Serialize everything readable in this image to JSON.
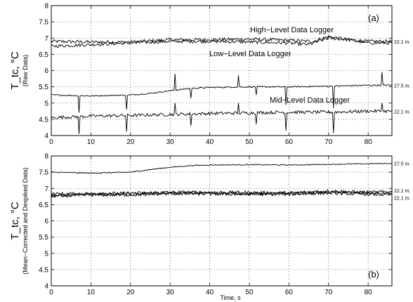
{
  "chart_data": [
    {
      "type": "line",
      "panel_label": "(a)",
      "ylabel": "T_tc, °C",
      "ylabel_sub": "(Raw Data)",
      "xlim": [
        0,
        86
      ],
      "ylim": [
        4,
        8
      ],
      "xticks": [
        0,
        10,
        20,
        30,
        40,
        50,
        60,
        70,
        80
      ],
      "yticks": [
        4,
        4.5,
        5,
        5.5,
        6,
        6.5,
        7,
        7.5,
        8
      ],
      "grid": true,
      "annotations": [
        "High−Level Data Logger",
        "Low−Level Data Logger",
        "Mid−Level Data Logger"
      ],
      "series": [
        {
          "name": "22.1 m.",
          "baseline": {
            "x": [
              0,
              10,
              20,
              30,
              40,
              50,
              60,
              66,
              70,
              75,
              80,
              86
            ],
            "y": [
              6.9,
              6.88,
              6.88,
              6.95,
              6.95,
              6.97,
              6.93,
              6.9,
              7.05,
              6.95,
              6.9,
              6.9
            ]
          },
          "noise": 0.05,
          "spikes": []
        },
        {
          "name": "",
          "baseline": {
            "x": [
              0,
              10,
              20,
              30,
              40,
              50,
              60,
              65,
              70,
              75,
              80,
              86
            ],
            "y": [
              6.75,
              6.8,
              6.85,
              6.9,
              6.9,
              6.88,
              6.85,
              6.8,
              7.0,
              6.95,
              6.85,
              6.85
            ]
          },
          "noise": 0.05,
          "spikes": []
        },
        {
          "name": "27.5 m.",
          "baseline": {
            "x": [
              0,
              10,
              20,
              25,
              30,
              35,
              40,
              50,
              60,
              70,
              80,
              86
            ],
            "y": [
              5.25,
              5.22,
              5.25,
              5.3,
              5.38,
              5.45,
              5.48,
              5.5,
              5.5,
              5.52,
              5.55,
              5.55
            ]
          },
          "noise": 0.02,
          "spikes": [
            {
              "x": 7,
              "y": 4.7
            },
            {
              "x": 19,
              "y": 4.8
            },
            {
              "x": 31.2,
              "y": 5.9
            },
            {
              "x": 35.2,
              "y": 5.15
            },
            {
              "x": 47.3,
              "y": 5.85
            },
            {
              "x": 51.8,
              "y": 5.25
            },
            {
              "x": 59.3,
              "y": 4.95
            },
            {
              "x": 71.3,
              "y": 4.85
            },
            {
              "x": 83.4,
              "y": 5.95
            }
          ]
        },
        {
          "name": "22.1 m.",
          "baseline": {
            "x": [
              0,
              10,
              20,
              30,
              40,
              50,
              60,
              70,
              80,
              86
            ],
            "y": [
              4.55,
              4.6,
              4.62,
              4.65,
              4.68,
              4.7,
              4.72,
              4.72,
              4.75,
              4.75
            ]
          },
          "noise": 0.05,
          "spikes": [
            {
              "x": 7,
              "y": 4.05
            },
            {
              "x": 19,
              "y": 4.12
            },
            {
              "x": 31.2,
              "y": 5.0
            },
            {
              "x": 35.2,
              "y": 4.3
            },
            {
              "x": 47.3,
              "y": 5.0
            },
            {
              "x": 51.8,
              "y": 4.35
            },
            {
              "x": 59.3,
              "y": 4.15
            },
            {
              "x": 71.3,
              "y": 4.08
            },
            {
              "x": 83.4,
              "y": 5.0
            }
          ]
        }
      ]
    },
    {
      "type": "line",
      "panel_label": "(b)",
      "ylabel": "T_tc, °C",
      "ylabel_sub": "(Mean−Corrected and Despiked Data)",
      "xlabel": "Time, s",
      "xlim": [
        0,
        86
      ],
      "ylim": [
        4,
        8
      ],
      "xticks": [
        0,
        10,
        20,
        30,
        40,
        50,
        60,
        70,
        80
      ],
      "yticks": [
        4,
        4.5,
        5,
        5.5,
        6,
        6.5,
        7,
        7.5,
        8
      ],
      "grid": true,
      "series": [
        {
          "name": "27.5 m.",
          "baseline": {
            "x": [
              0,
              10,
              20,
              25,
              30,
              35,
              40,
              50,
              60,
              70,
              80,
              86
            ],
            "y": [
              7.5,
              7.47,
              7.5,
              7.58,
              7.65,
              7.7,
              7.72,
              7.73,
              7.72,
              7.74,
              7.76,
              7.77
            ]
          },
          "noise": 0.015,
          "spikes": []
        },
        {
          "name": "22.1 m.",
          "baseline": {
            "x": [
              0,
              10,
              20,
              30,
              40,
              50,
              60,
              70,
              80,
              86
            ],
            "y": [
              6.83,
              6.84,
              6.85,
              6.88,
              6.88,
              6.87,
              6.86,
              6.92,
              6.88,
              6.9
            ]
          },
          "noise": 0.05,
          "spikes": []
        },
        {
          "name": "",
          "baseline": {
            "x": [
              0,
              10,
              20,
              30,
              40,
              50,
              60,
              70,
              80,
              86
            ],
            "y": [
              6.78,
              6.82,
              6.83,
              6.85,
              6.86,
              6.84,
              6.84,
              6.88,
              6.85,
              6.85
            ]
          },
          "noise": 0.05,
          "spikes": []
        },
        {
          "name": "22.1 m.",
          "baseline": {
            "x": [
              0,
              10,
              20,
              30,
              40,
              50,
              60,
              70,
              80,
              86
            ],
            "y": [
              6.76,
              6.8,
              6.8,
              6.84,
              6.83,
              6.82,
              6.82,
              6.86,
              6.82,
              6.8
            ]
          },
          "noise": 0.05,
          "spikes": []
        }
      ]
    }
  ]
}
